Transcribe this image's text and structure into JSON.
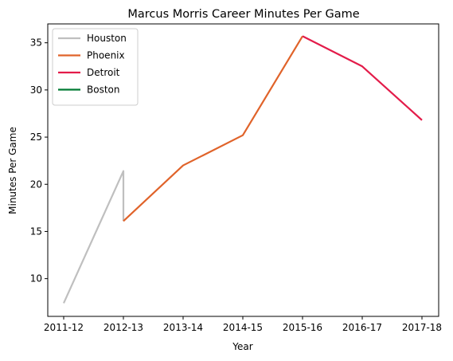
{
  "chart_data": {
    "type": "line",
    "title": "Marcus Morris  Career Minutes Per Game",
    "xlabel": "Year",
    "ylabel": "Minutes Per Game",
    "categories": [
      "2011-12",
      "2012-13",
      "2013-14",
      "2014-15",
      "2015-16",
      "2016-17",
      "2017-18"
    ],
    "yticks": [
      10,
      15,
      20,
      25,
      30,
      35
    ],
    "ylim": [
      6,
      37
    ],
    "grid": false,
    "legend_position": "top-left",
    "series": [
      {
        "name": "Houston",
        "color": "#bfbfbf",
        "points": [
          {
            "x": "2011-12",
            "y": 7.4
          },
          {
            "x": "2012-13",
            "y": 21.4
          },
          {
            "x": "2012-13",
            "y": 16.1
          }
        ]
      },
      {
        "name": "Phoenix",
        "color": "#e0632a",
        "points": [
          {
            "x": "2012-13",
            "y": 16.1
          },
          {
            "x": "2013-14",
            "y": 22.0
          },
          {
            "x": "2014-15",
            "y": 25.2
          },
          {
            "x": "2015-16",
            "y": 35.7
          }
        ]
      },
      {
        "name": "Detroit",
        "color": "#e31c4a",
        "points": [
          {
            "x": "2015-16",
            "y": 35.7
          },
          {
            "x": "2016-17",
            "y": 32.5
          },
          {
            "x": "2017-18",
            "y": 26.8
          }
        ]
      },
      {
        "name": "Boston",
        "color": "#007a33",
        "points": []
      }
    ]
  }
}
